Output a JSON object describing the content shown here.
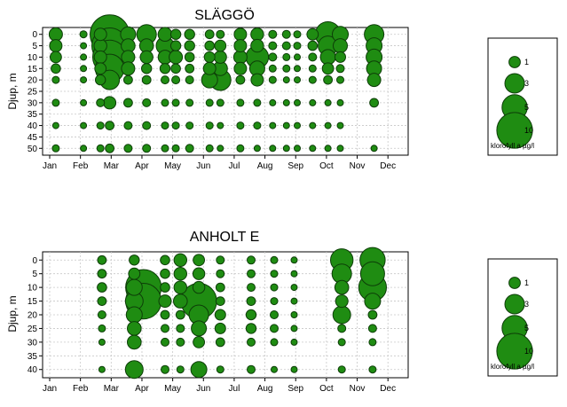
{
  "colors": {
    "bubble_fill": "#1f8c12",
    "bubble_stroke": "#0d3d08",
    "grid": "#c8c8c8",
    "frame": "#000000"
  },
  "chart_data": [
    {
      "type": "scatter",
      "title": "SLÄGGÖ",
      "ylabel": "Djup, m",
      "xlabel": "",
      "months": [
        "Jan",
        "Feb",
        "Mar",
        "Apr",
        "May",
        "Jun",
        "Jul",
        "Aug",
        "Sep",
        "Oct",
        "Nov",
        "Dec"
      ],
      "ylim": [
        53,
        -3
      ],
      "yticks": [
        "0",
        "5",
        "10",
        "15",
        "20",
        "25",
        "30",
        "35",
        "40",
        "45",
        "50"
      ],
      "grid": true,
      "size_legend": {
        "values": [
          "1",
          "3",
          "5",
          "10"
        ],
        "unit": "klorofyll a µg/l"
      },
      "points": [
        [
          1.2,
          0,
          1.4
        ],
        [
          1.2,
          5,
          1.2
        ],
        [
          1.2,
          10,
          1
        ],
        [
          1.2,
          15,
          0.7
        ],
        [
          1.2,
          20,
          0.4
        ],
        [
          1.2,
          30,
          0.4
        ],
        [
          1.2,
          40,
          0.3
        ],
        [
          1.2,
          50,
          0.4
        ],
        [
          2.1,
          0,
          0.4
        ],
        [
          2.1,
          5,
          0.3
        ],
        [
          2.1,
          10,
          0.3
        ],
        [
          2.1,
          15,
          0.3
        ],
        [
          2.1,
          20,
          0.3
        ],
        [
          2.1,
          30,
          0.3
        ],
        [
          2.1,
          40,
          0.3
        ],
        [
          2.1,
          50,
          0.3
        ],
        [
          2.65,
          0,
          1.2
        ],
        [
          2.65,
          5,
          1.3
        ],
        [
          2.65,
          10,
          1.2
        ],
        [
          2.65,
          15,
          1
        ],
        [
          2.65,
          20,
          0.8
        ],
        [
          2.65,
          30,
          0.5
        ],
        [
          2.65,
          40,
          0.4
        ],
        [
          2.65,
          50,
          0.4
        ],
        [
          2.95,
          0,
          12
        ],
        [
          2.95,
          5,
          10
        ],
        [
          2.95,
          10,
          9
        ],
        [
          2.95,
          15,
          6.5
        ],
        [
          2.95,
          20,
          3
        ],
        [
          2.95,
          30,
          1.2
        ],
        [
          2.95,
          40,
          0.6
        ],
        [
          2.95,
          50,
          0.6
        ],
        [
          3.55,
          0,
          1.8
        ],
        [
          3.55,
          5,
          1.5
        ],
        [
          3.55,
          10,
          1.4
        ],
        [
          3.55,
          15,
          1.4
        ],
        [
          3.55,
          20,
          0.6
        ],
        [
          3.55,
          30,
          0.6
        ],
        [
          3.55,
          40,
          0.5
        ],
        [
          3.55,
          50,
          0.5
        ],
        [
          4.15,
          0,
          3
        ],
        [
          4.15,
          5,
          1.5
        ],
        [
          4.15,
          10,
          1.3
        ],
        [
          4.15,
          15,
          0.8
        ],
        [
          4.15,
          20,
          0.6
        ],
        [
          4.15,
          30,
          0.5
        ],
        [
          4.15,
          40,
          0.5
        ],
        [
          4.15,
          50,
          0.5
        ],
        [
          4.75,
          0,
          1.5
        ],
        [
          4.75,
          5,
          2.5
        ],
        [
          4.75,
          10,
          1.5
        ],
        [
          4.75,
          15,
          0.8
        ],
        [
          4.75,
          20,
          0.5
        ],
        [
          4.75,
          30,
          0.4
        ],
        [
          4.75,
          40,
          0.4
        ],
        [
          4.75,
          50,
          0.4
        ],
        [
          5.1,
          0,
          0.8
        ],
        [
          5.1,
          5,
          0.8
        ],
        [
          5.1,
          10,
          1.4
        ],
        [
          5.1,
          15,
          0.7
        ],
        [
          5.1,
          20,
          0.5
        ],
        [
          5.1,
          30,
          0.4
        ],
        [
          5.1,
          40,
          0.4
        ],
        [
          5.1,
          50,
          0.4
        ],
        [
          5.55,
          0,
          0.8
        ],
        [
          5.55,
          5,
          0.8
        ],
        [
          5.55,
          10,
          0.7
        ],
        [
          5.55,
          15,
          0.6
        ],
        [
          5.55,
          20,
          0.5
        ],
        [
          5.55,
          30,
          0.4
        ],
        [
          5.55,
          40,
          0.4
        ],
        [
          5.55,
          50,
          0.5
        ],
        [
          6.2,
          0,
          0.6
        ],
        [
          6.2,
          5,
          0.7
        ],
        [
          6.2,
          10,
          0.9
        ],
        [
          6.2,
          15,
          1.2
        ],
        [
          6.2,
          20,
          2
        ],
        [
          6.2,
          30,
          0.4
        ],
        [
          6.2,
          40,
          0.4
        ],
        [
          6.2,
          50,
          0.4
        ],
        [
          6.55,
          0,
          0.5
        ],
        [
          6.55,
          5,
          1
        ],
        [
          6.55,
          10,
          1.2
        ],
        [
          6.55,
          15,
          1.6
        ],
        [
          6.55,
          20,
          3.5
        ],
        [
          6.55,
          30,
          0.4
        ],
        [
          6.55,
          40,
          0.3
        ],
        [
          6.55,
          50,
          0.3
        ],
        [
          7.2,
          0,
          1.2
        ],
        [
          7.2,
          5,
          1.2
        ],
        [
          7.2,
          10,
          1.4
        ],
        [
          7.2,
          15,
          1.2
        ],
        [
          7.2,
          20,
          0.6
        ],
        [
          7.2,
          30,
          0.4
        ],
        [
          7.2,
          40,
          0.4
        ],
        [
          7.2,
          50,
          0.4
        ],
        [
          7.75,
          0,
          1.3
        ],
        [
          7.75,
          5,
          1.3
        ],
        [
          7.75,
          10,
          4
        ],
        [
          7.75,
          15,
          1.8
        ],
        [
          7.75,
          20,
          1.2
        ],
        [
          7.75,
          30,
          0.4
        ],
        [
          7.75,
          40,
          0.4
        ],
        [
          7.75,
          50,
          0.3
        ],
        [
          8.25,
          0,
          0.5
        ],
        [
          8.25,
          5,
          0.5
        ],
        [
          8.25,
          10,
          0.5
        ],
        [
          8.25,
          15,
          0.4
        ],
        [
          8.25,
          20,
          0.4
        ],
        [
          8.25,
          30,
          0.3
        ],
        [
          8.25,
          40,
          0.3
        ],
        [
          8.25,
          50,
          0.3
        ],
        [
          8.7,
          0,
          0.5
        ],
        [
          8.7,
          5,
          0.5
        ],
        [
          8.7,
          10,
          0.4
        ],
        [
          8.7,
          15,
          0.4
        ],
        [
          8.7,
          20,
          0.3
        ],
        [
          8.7,
          30,
          0.3
        ],
        [
          8.7,
          40,
          0.3
        ],
        [
          8.7,
          50,
          0.3
        ],
        [
          9.05,
          0,
          0.4
        ],
        [
          9.05,
          5,
          0.4
        ],
        [
          9.05,
          10,
          0.3
        ],
        [
          9.05,
          15,
          0.3
        ],
        [
          9.05,
          20,
          0.3
        ],
        [
          9.05,
          30,
          0.3
        ],
        [
          9.05,
          40,
          0.3
        ],
        [
          9.05,
          50,
          0.3
        ],
        [
          9.55,
          0,
          1
        ],
        [
          9.55,
          5,
          0.7
        ],
        [
          9.55,
          10,
          0.5
        ],
        [
          9.55,
          15,
          0.4
        ],
        [
          9.55,
          20,
          0.4
        ],
        [
          9.55,
          30,
          0.3
        ],
        [
          9.55,
          40,
          0.3
        ],
        [
          9.55,
          50,
          0.3
        ],
        [
          10.05,
          0,
          5
        ],
        [
          10.05,
          5,
          3
        ],
        [
          10.05,
          10,
          1.8
        ],
        [
          10.05,
          15,
          1
        ],
        [
          10.05,
          20,
          0.6
        ],
        [
          10.05,
          30,
          0.3
        ],
        [
          10.05,
          40,
          0.3
        ],
        [
          10.05,
          50,
          0.3
        ],
        [
          10.45,
          0,
          2
        ],
        [
          10.45,
          5,
          1.6
        ],
        [
          10.45,
          10,
          0.9
        ],
        [
          10.45,
          15,
          0.5
        ],
        [
          10.45,
          20,
          0.4
        ],
        [
          10.45,
          30,
          0.3
        ],
        [
          10.45,
          40,
          0.3
        ],
        [
          10.45,
          50,
          0.3
        ],
        [
          11.55,
          0,
          3
        ],
        [
          11.55,
          5,
          2
        ],
        [
          11.55,
          10,
          2
        ],
        [
          11.55,
          15,
          1.8
        ],
        [
          11.55,
          20,
          1.4
        ],
        [
          11.55,
          30,
          0.6
        ],
        [
          11.55,
          50,
          0.3
        ]
      ]
    },
    {
      "type": "scatter",
      "title": "ANHOLT E",
      "ylabel": "Djup, m",
      "xlabel": "",
      "months": [
        "Jan",
        "Feb",
        "Mar",
        "Apr",
        "May",
        "Jun",
        "Jul",
        "Aug",
        "Sep",
        "Oct",
        "Nov",
        "Dec"
      ],
      "ylim": [
        43,
        -3
      ],
      "yticks": [
        "0",
        "5",
        "10",
        "15",
        "20",
        "25",
        "30",
        "35",
        "40"
      ],
      "grid": true,
      "size_legend": {
        "values": [
          "1",
          "3",
          "5",
          "10"
        ],
        "unit": "klorofyll a µg/l"
      },
      "points": [
        [
          2.7,
          0,
          0.6
        ],
        [
          2.7,
          5,
          0.6
        ],
        [
          2.7,
          10,
          0.7
        ],
        [
          2.7,
          15,
          0.6
        ],
        [
          2.7,
          20,
          0.5
        ],
        [
          2.7,
          25,
          0.4
        ],
        [
          2.7,
          30,
          0.3
        ],
        [
          2.7,
          40,
          0.3
        ],
        [
          3.75,
          0,
          0.8
        ],
        [
          3.75,
          5,
          1
        ],
        [
          3.75,
          10,
          2
        ],
        [
          3.75,
          15,
          2.5
        ],
        [
          3.75,
          20,
          2
        ],
        [
          3.75,
          25,
          1.5
        ],
        [
          3.75,
          30,
          1.5
        ],
        [
          3.75,
          40,
          2.5
        ],
        [
          4.05,
          10,
          10
        ],
        [
          4.05,
          15,
          10
        ],
        [
          4.75,
          0,
          0.7
        ],
        [
          4.75,
          5,
          0.7
        ],
        [
          4.75,
          10,
          0.7
        ],
        [
          4.75,
          15,
          1.2
        ],
        [
          4.75,
          20,
          0.6
        ],
        [
          4.75,
          25,
          0.5
        ],
        [
          4.75,
          30,
          0.5
        ],
        [
          4.75,
          40,
          0.5
        ],
        [
          5.25,
          0,
          1.3
        ],
        [
          5.25,
          5,
          1.3
        ],
        [
          5.25,
          10,
          1.3
        ],
        [
          5.25,
          15,
          1.5
        ],
        [
          5.25,
          20,
          0.6
        ],
        [
          5.25,
          25,
          0.5
        ],
        [
          5.25,
          30,
          0.5
        ],
        [
          5.25,
          40,
          0.4
        ],
        [
          5.85,
          0,
          1
        ],
        [
          5.85,
          5,
          1.1
        ],
        [
          5.85,
          10,
          1.1
        ],
        [
          5.85,
          15,
          10
        ],
        [
          5.85,
          20,
          3
        ],
        [
          5.85,
          25,
          1.8
        ],
        [
          5.85,
          30,
          1
        ],
        [
          5.85,
          40,
          2
        ],
        [
          6.55,
          0,
          0.5
        ],
        [
          6.55,
          5,
          0.5
        ],
        [
          6.55,
          10,
          0.6
        ],
        [
          6.55,
          15,
          0.6
        ],
        [
          6.55,
          20,
          0.9
        ],
        [
          6.55,
          25,
          0.9
        ],
        [
          6.55,
          30,
          0.6
        ],
        [
          6.55,
          40,
          0.4
        ],
        [
          7.55,
          0,
          0.5
        ],
        [
          7.55,
          5,
          0.5
        ],
        [
          7.55,
          10,
          0.5
        ],
        [
          7.55,
          15,
          0.6
        ],
        [
          7.55,
          20,
          0.8
        ],
        [
          7.55,
          25,
          0.8
        ],
        [
          7.55,
          30,
          0.5
        ],
        [
          7.55,
          40,
          0.5
        ],
        [
          8.3,
          0,
          0.4
        ],
        [
          8.3,
          5,
          0.4
        ],
        [
          8.3,
          10,
          0.4
        ],
        [
          8.3,
          15,
          0.4
        ],
        [
          8.3,
          20,
          0.5
        ],
        [
          8.3,
          25,
          0.5
        ],
        [
          8.3,
          30,
          0.4
        ],
        [
          8.3,
          40,
          0.3
        ],
        [
          8.95,
          0,
          0.3
        ],
        [
          8.95,
          5,
          0.3
        ],
        [
          8.95,
          10,
          0.3
        ],
        [
          8.95,
          15,
          0.3
        ],
        [
          8.95,
          20,
          0.3
        ],
        [
          8.95,
          25,
          0.3
        ],
        [
          8.95,
          30,
          0.3
        ],
        [
          8.95,
          40,
          0.3
        ],
        [
          10.5,
          0,
          4
        ],
        [
          10.5,
          5,
          3
        ],
        [
          10.5,
          10,
          1.5
        ],
        [
          10.5,
          15,
          1.2
        ],
        [
          10.5,
          20,
          2.5
        ],
        [
          10.5,
          25,
          0.5
        ],
        [
          10.5,
          30,
          0.4
        ],
        [
          10.5,
          40,
          0.4
        ],
        [
          11.5,
          0,
          5
        ],
        [
          11.5,
          5,
          4.5
        ],
        [
          11.5,
          10,
          6
        ],
        [
          11.5,
          15,
          2
        ],
        [
          11.5,
          20,
          0.6
        ],
        [
          11.5,
          25,
          0.5
        ],
        [
          11.5,
          30,
          0.4
        ],
        [
          11.5,
          40,
          0.4
        ]
      ]
    }
  ]
}
